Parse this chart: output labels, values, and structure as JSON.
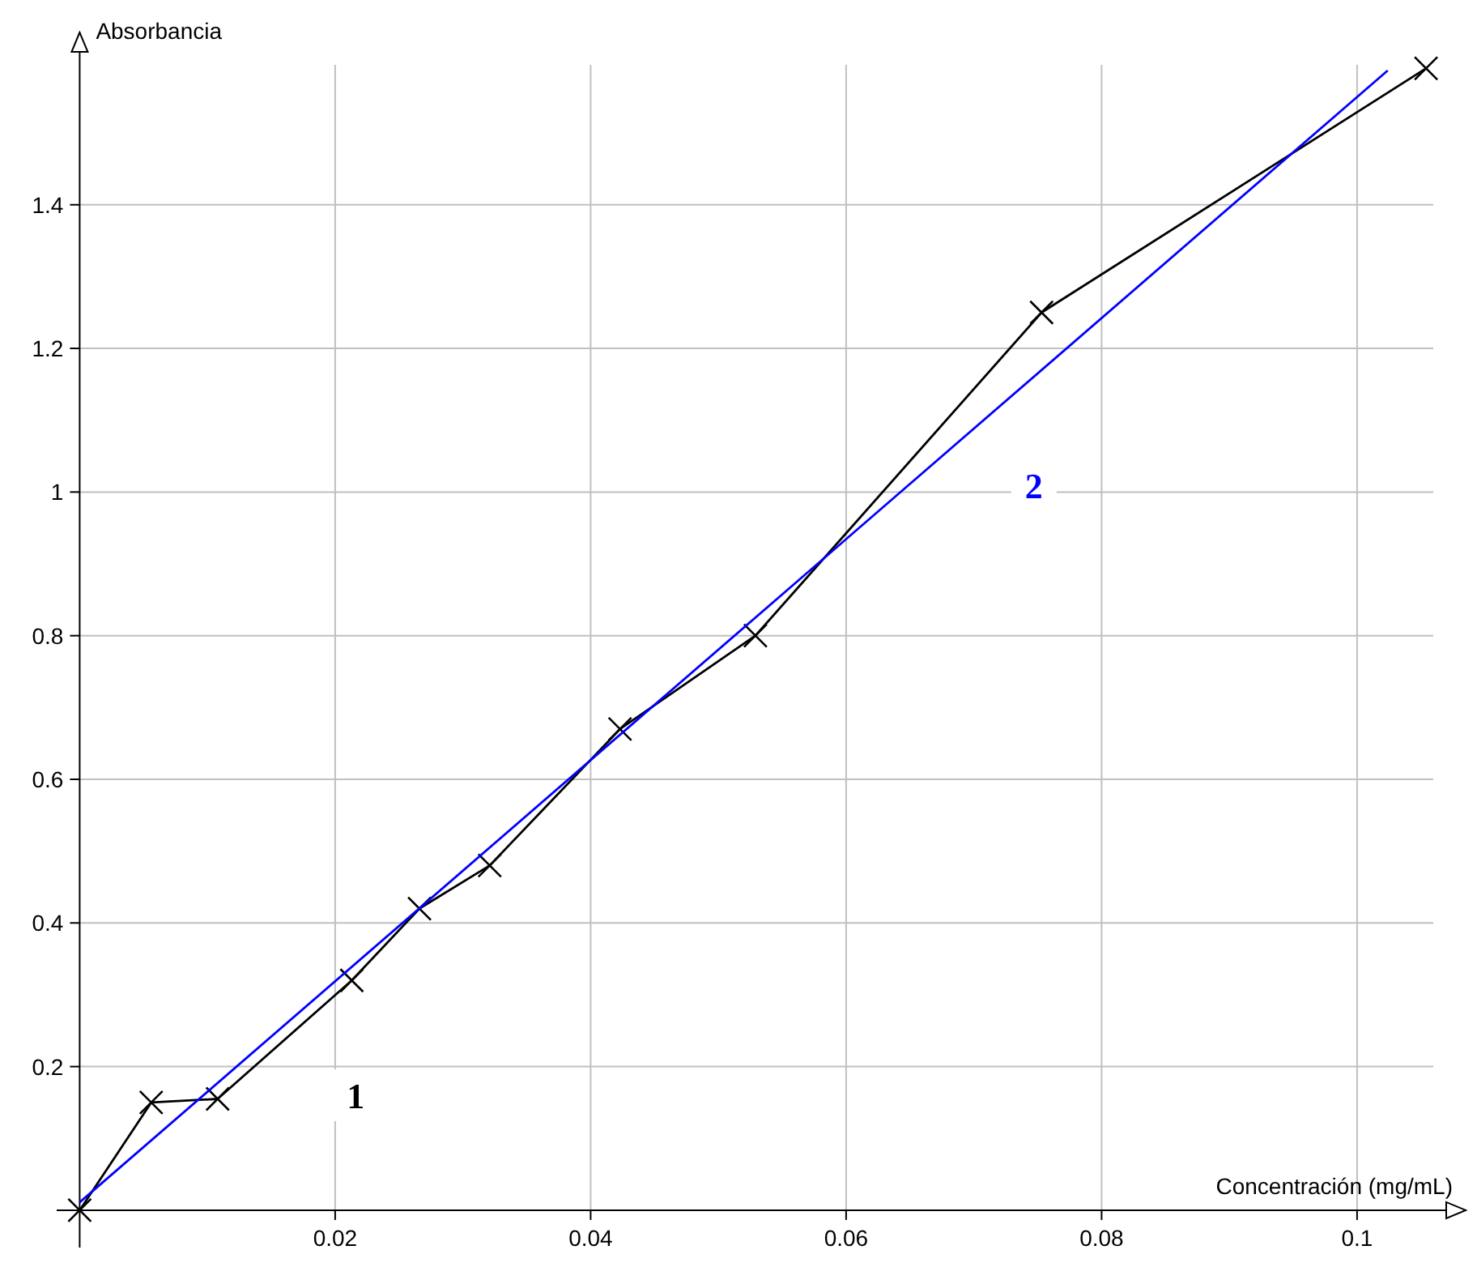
{
  "chart_data": {
    "type": "line",
    "xlabel": "Concentración (mg/mL)",
    "ylabel": "Absorbancia",
    "xlim": [
      -0.0018,
      0.1085
    ],
    "ylim": [
      -0.052,
      1.64
    ],
    "xticks": [
      0.02,
      0.04,
      0.06,
      0.08,
      0.1
    ],
    "yticks": [
      0.2,
      0.4,
      0.6,
      0.8,
      1,
      1.2,
      1.4
    ],
    "grid": true,
    "series": [
      {
        "color": "#000000",
        "marker": "cross",
        "x": [
          0,
          0.0056,
          0.0108,
          0.0213,
          0.0266,
          0.0321,
          0.0423,
          0.0529,
          0.0753,
          0.1054
        ],
        "values": [
          0,
          0.15,
          0.155,
          0.32,
          0.42,
          0.48,
          0.67,
          0.8,
          1.25,
          1.59
        ]
      },
      {
        "color": "#0000ff",
        "marker": "none",
        "x": [
          0,
          0.1024
        ],
        "values": [
          0.011,
          1.587
        ]
      }
    ],
    "annotations": [
      {
        "text": "1",
        "x": 0.0216,
        "y": 0.16
      },
      {
        "text": "2",
        "x": 0.0747,
        "y": 1.01
      }
    ]
  }
}
